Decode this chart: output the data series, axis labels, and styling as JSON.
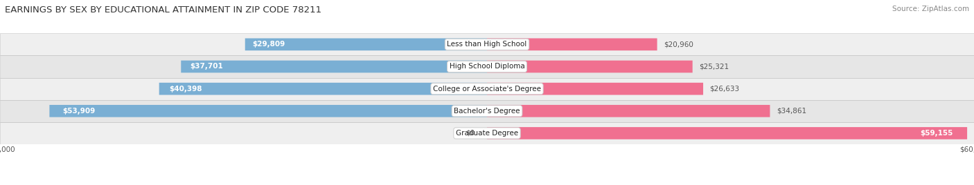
{
  "title": "EARNINGS BY SEX BY EDUCATIONAL ATTAINMENT IN ZIP CODE 78211",
  "source": "Source: ZipAtlas.com",
  "categories": [
    "Less than High School",
    "High School Diploma",
    "College or Associate's Degree",
    "Bachelor's Degree",
    "Graduate Degree"
  ],
  "male_values": [
    29809,
    37701,
    40398,
    53909,
    0
  ],
  "female_values": [
    20960,
    25321,
    26633,
    34861,
    59155
  ],
  "male_labels": [
    "$29,809",
    "$37,701",
    "$40,398",
    "$53,909",
    "$0"
  ],
  "female_labels": [
    "$20,960",
    "$25,321",
    "$26,633",
    "$34,861",
    "$59,155"
  ],
  "male_color": "#7aafd4",
  "male_color_light": "#b0cfe8",
  "female_color": "#f07090",
  "female_color_light": "#f8b0c4",
  "row_bg_colors": [
    "#efefef",
    "#e6e6e6"
  ],
  "row_border_color": "#d0d0d0",
  "axis_max": 60000,
  "bar_height": 0.55,
  "title_fontsize": 9.5,
  "label_fontsize": 7.5,
  "source_fontsize": 7.5,
  "axis_label_fontsize": 7.5,
  "category_fontsize": 7.5
}
